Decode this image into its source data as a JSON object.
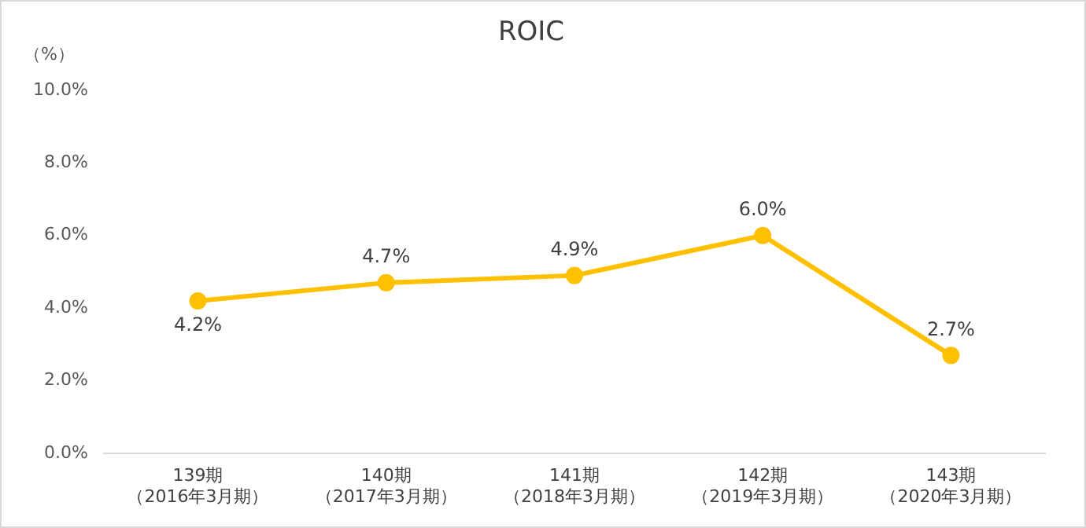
{
  "chart_data": {
    "type": "line",
    "title": "ROIC",
    "ylabel": "（%）",
    "categories": [
      "139期（2016年3月期）",
      "140期（2017年3月期）",
      "141期（2018年3月期）",
      "142期（2019年3月期）",
      "143期（2020年3月期）"
    ],
    "series": [
      {
        "color": "#ffc000",
        "values": [
          4.2,
          4.7,
          4.9,
          6.0,
          2.7
        ],
        "value_labels": [
          "4.2%",
          "4.7%",
          "4.9%",
          "6.0%",
          "2.7%"
        ]
      }
    ],
    "ylim": [
      0,
      10
    ],
    "yticks": [
      {
        "value": 0,
        "label": "0.0%"
      },
      {
        "value": 2,
        "label": "2.0%"
      },
      {
        "value": 4,
        "label": "4.0%"
      },
      {
        "value": 6,
        "label": "6.0%"
      },
      {
        "value": 8,
        "label": "8.0%"
      },
      {
        "value": 10,
        "label": "10.0%"
      }
    ],
    "grid": false,
    "legend": false,
    "marker": "circle",
    "line_style": "solid"
  }
}
